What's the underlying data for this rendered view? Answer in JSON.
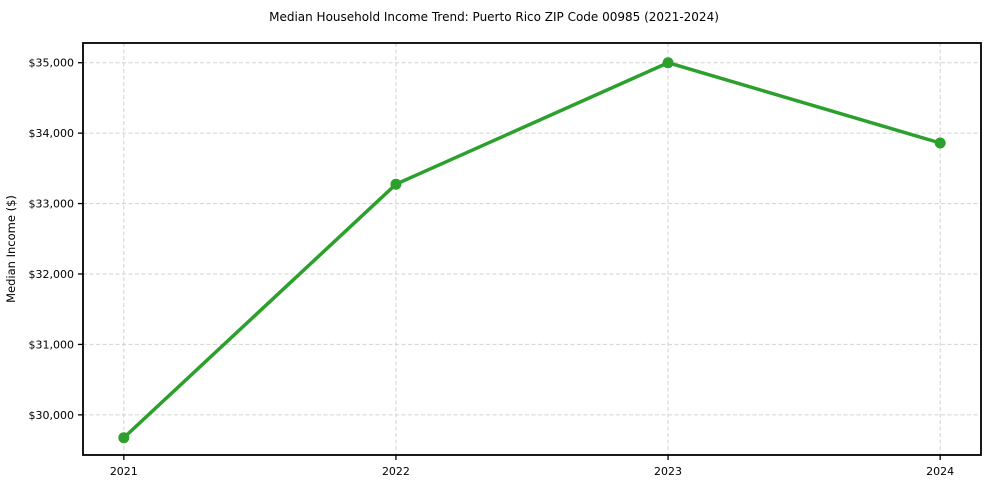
{
  "chart_data": {
    "type": "line",
    "title": "Median Household Income Trend: Puerto Rico ZIP Code 00985 (2021-2024)",
    "xlabel": "",
    "ylabel": "Median Income ($)",
    "x": [
      2021,
      2022,
      2023,
      2024
    ],
    "series": [
      {
        "name": "Median Household Income",
        "values": [
          29675,
          33275,
          35000,
          33860
        ],
        "color": "#2ca02c",
        "marker": "circle"
      }
    ],
    "xticks": [
      2021,
      2022,
      2023,
      2024
    ],
    "xtick_labels": [
      "2021",
      "2022",
      "2023",
      "2024"
    ],
    "yticks": [
      30000,
      31000,
      32000,
      33000,
      34000,
      35000
    ],
    "ytick_labels": [
      "$30,000",
      "$31,000",
      "$32,000",
      "$33,000",
      "$34,000",
      "$35,000"
    ],
    "xlim": [
      2020.85,
      2024.15
    ],
    "ylim": [
      29430,
      35280
    ],
    "grid": true,
    "grid_color": "#d2d2d2",
    "axis_color": "#000000",
    "background_color": "#ffffff",
    "legend": "none"
  }
}
